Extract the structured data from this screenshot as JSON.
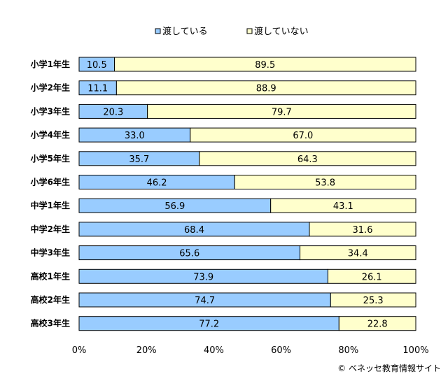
{
  "chart_data": {
    "type": "bar",
    "orientation": "horizontal",
    "stacked": true,
    "title": "",
    "xlabel": "",
    "ylabel": "",
    "xlim": [
      0,
      100
    ],
    "x_ticks": [
      "0%",
      "20%",
      "40%",
      "60%",
      "80%",
      "100%"
    ],
    "legend_position": "top",
    "grid": false,
    "categories": [
      "小学1年生",
      "小学2年生",
      "小学3年生",
      "小学4年生",
      "小学5年生",
      "小学6年生",
      "中学1年生",
      "中学2年生",
      "中学3年生",
      "高校1年生",
      "高校2年生",
      "高校3年生"
    ],
    "series": [
      {
        "name": "渡している",
        "color": "#99ccff",
        "values": [
          10.5,
          11.1,
          20.3,
          33.0,
          35.7,
          46.2,
          56.9,
          68.4,
          65.6,
          73.9,
          74.7,
          77.2
        ],
        "labels": [
          "10.5",
          "11.1",
          "20.3",
          "33.0",
          "35.7",
          "46.2",
          "56.9",
          "68.4",
          "65.6",
          "73.9",
          "74.7",
          "77.2"
        ]
      },
      {
        "name": "渡していない",
        "color": "#ffffcc",
        "values": [
          89.5,
          88.9,
          79.7,
          67.0,
          64.3,
          53.8,
          43.1,
          31.6,
          34.4,
          26.1,
          25.3,
          22.8
        ],
        "labels": [
          "89.5",
          "88.9",
          "79.7",
          "67.0",
          "64.3",
          "53.8",
          "43.1",
          "31.6",
          "34.4",
          "26.1",
          "25.3",
          "22.8"
        ]
      }
    ]
  },
  "credit": "© ベネッセ教育情報サイト"
}
